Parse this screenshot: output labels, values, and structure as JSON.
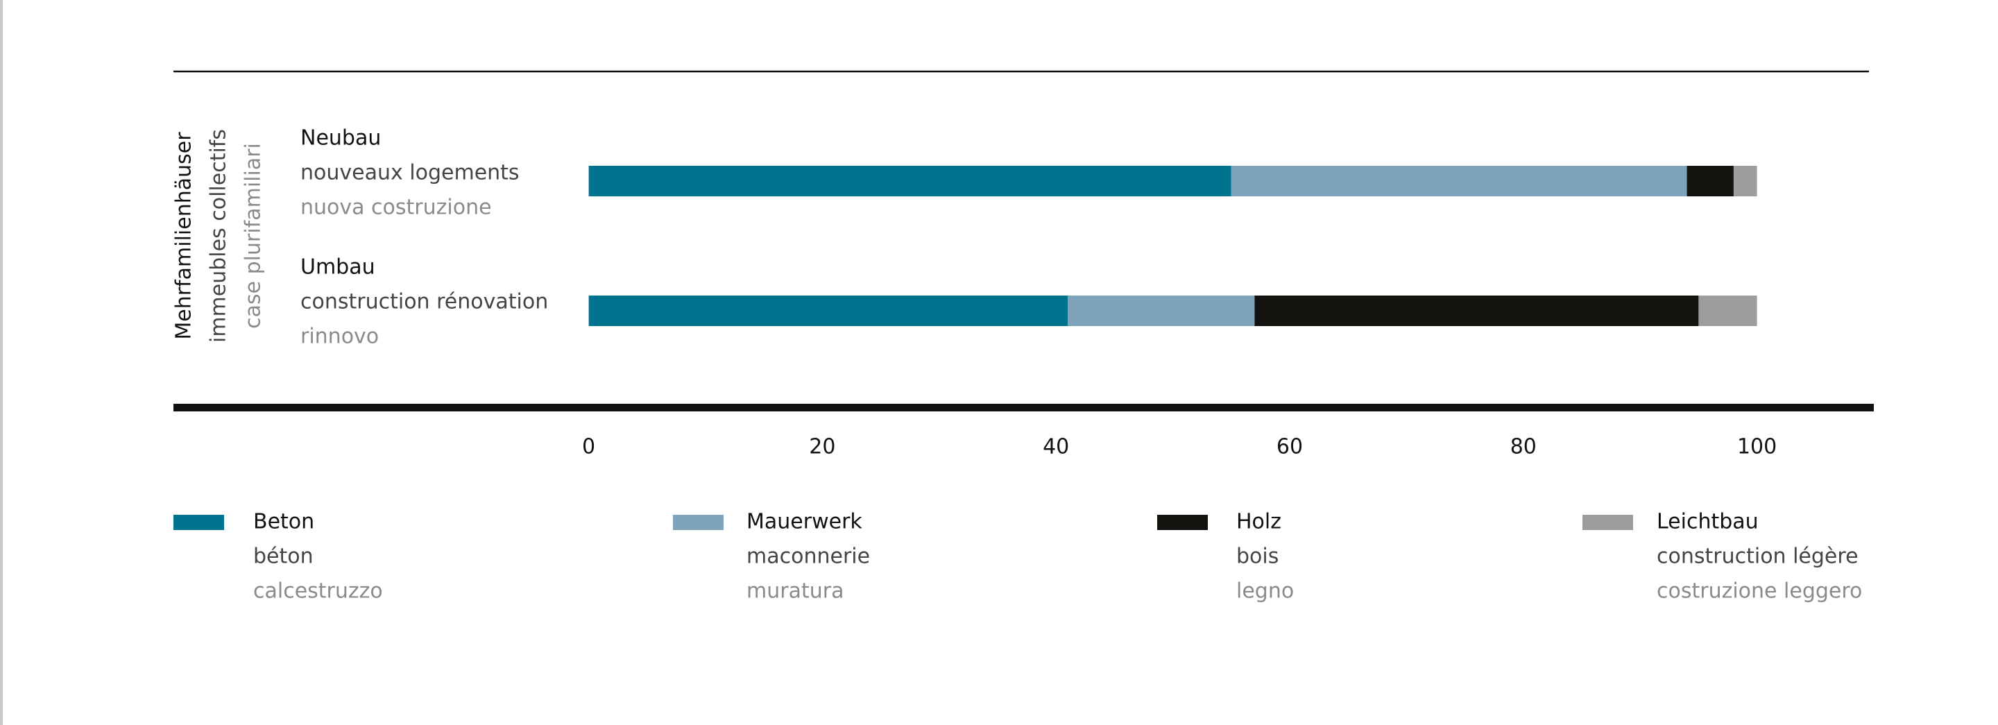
{
  "chart_data": {
    "type": "stacked_bar_horizontal",
    "group_label": [
      "Mehrfamilienhäuser",
      "immeubles collectifs",
      "case plurifamiliari"
    ],
    "categories": [
      [
        "Neubau",
        "nouveaux logements",
        "nuova costruzione"
      ],
      [
        "Umbau",
        "construction rénovation",
        "rinnovo"
      ]
    ],
    "series": [
      {
        "name": [
          "Beton",
          "béton",
          "calcestruzzo"
        ],
        "color": "#00738f",
        "values": [
          55,
          41
        ]
      },
      {
        "name": [
          "Mauerwerk",
          "maconnerie",
          "muratura"
        ],
        "color": "#7ea3ba",
        "values": [
          39,
          16
        ]
      },
      {
        "name": [
          "Holz",
          "bois",
          "legno"
        ],
        "color": "#12120e",
        "values": [
          4,
          38
        ]
      },
      {
        "name": [
          "Leichtbau",
          "construction légère",
          "costruzione leggero"
        ],
        "color": "#9d9d9d",
        "values": [
          2,
          5
        ]
      }
    ],
    "xlim": [
      0,
      110
    ],
    "xticks": [
      0,
      20,
      40,
      60,
      80,
      100
    ]
  }
}
